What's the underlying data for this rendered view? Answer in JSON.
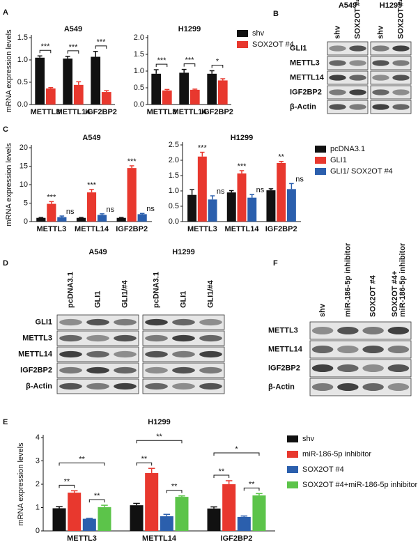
{
  "panel_labels": [
    "A",
    "B",
    "C",
    "D",
    "E",
    "F"
  ],
  "chart_data": [
    {
      "type": "bar",
      "title": "A549",
      "ylabel": "mRNA expression levels",
      "categories": [
        "METTL3",
        "METTL14",
        "IGF2BP2"
      ],
      "series": [
        {
          "color": "#111111",
          "values": [
            1.05,
            1.03,
            1.07
          ],
          "errors": [
            0.04,
            0.05,
            0.12
          ]
        },
        {
          "color": "#e8382e",
          "values": [
            0.36,
            0.44,
            0.28
          ],
          "errors": [
            0.02,
            0.07,
            0.03
          ]
        }
      ],
      "comparisons": [
        {
          "pair": [
            0,
            1
          ],
          "labels": [
            "***",
            "***",
            "***"
          ]
        }
      ],
      "ylim": [
        0,
        1.5
      ],
      "yticks": [
        {
          "value": 0,
          "label": "0.0"
        },
        0.5,
        {
          "value": 1,
          "label": "1.0"
        },
        1.5
      ]
    },
    {
      "type": "bar",
      "title": "H1299",
      "categories": [
        "METTL3",
        "METTL14",
        "IGF2BP2"
      ],
      "series": [
        {
          "name": "shv",
          "color": "#111111",
          "values": [
            0.92,
            0.95,
            0.92
          ],
          "errors": [
            0.12,
            0.1,
            0.09
          ]
        },
        {
          "name": "SOX2OT #4",
          "color": "#e8382e",
          "values": [
            0.42,
            0.44,
            0.72
          ],
          "errors": [
            0.03,
            0.02,
            0.05
          ]
        }
      ],
      "comparisons": [
        {
          "pair": [
            0,
            1
          ],
          "labels": [
            "***",
            "***",
            "*"
          ]
        }
      ],
      "ylim": [
        0,
        2
      ],
      "yticks": [
        {
          "value": 0,
          "label": "0.0"
        },
        0.5,
        {
          "value": 1,
          "label": "1.0"
        },
        1.5,
        {
          "value": 2,
          "label": "2.0"
        }
      ],
      "legend": "right"
    },
    {
      "type": "bar",
      "title": "A549",
      "ylabel": "mRNA expression levels",
      "categories": [
        "METTL3",
        "METTL14",
        "IGF2BP2"
      ],
      "series": [
        {
          "color": "#111111",
          "values": [
            1.0,
            1.0,
            1.0
          ],
          "errors": [
            0.1,
            0.1,
            0.1
          ]
        },
        {
          "color": "#e8382e",
          "values": [
            4.8,
            7.9,
            14.5
          ],
          "errors": [
            0.6,
            0.8,
            0.6
          ],
          "significance": [
            "***",
            "***",
            "***"
          ]
        },
        {
          "color": "#2b5fad",
          "values": [
            1.2,
            1.8,
            2.0
          ],
          "errors": [
            0.3,
            0.3,
            0.2
          ],
          "significance": [
            "ns",
            "ns",
            "ns"
          ]
        }
      ],
      "ylim": [
        0,
        20
      ],
      "yticks": [
        0,
        5,
        10,
        15,
        20
      ]
    },
    {
      "type": "bar",
      "title": "H1299",
      "categories": [
        "METTL3",
        "METTL14",
        "IGF2BP2"
      ],
      "series": [
        {
          "name": "pcDNA3.1",
          "color": "#111111",
          "values": [
            0.87,
            0.95,
            1.02
          ],
          "errors": [
            0.17,
            0.06,
            0.05
          ]
        },
        {
          "name": "GLI1",
          "color": "#e8382e",
          "values": [
            2.12,
            1.57,
            1.91
          ],
          "errors": [
            0.14,
            0.09,
            0.05
          ],
          "significance": [
            "***",
            "***",
            "**"
          ]
        },
        {
          "name": "GLI1/ SOX2OT #4",
          "color": "#2b5fad",
          "values": [
            0.72,
            0.78,
            1.06
          ],
          "errors": [
            0.12,
            0.1,
            0.18
          ],
          "significance": [
            "ns",
            "ns",
            "ns"
          ]
        }
      ],
      "ylim": [
        0,
        2.5
      ],
      "yticks": [
        {
          "value": 0,
          "label": "0.0"
        },
        0.5,
        {
          "value": 1,
          "label": "1.0"
        },
        1.5,
        {
          "value": 2,
          "label": "2.0"
        },
        2.5
      ],
      "legend": "right"
    },
    {
      "type": "bar",
      "title": "H1299",
      "ylabel": "mRNA expression levels",
      "categories": [
        "METTL3",
        "METTL14",
        "IGF2BP2"
      ],
      "series": [
        {
          "name": "shv",
          "color": "#111111",
          "values": [
            0.97,
            1.1,
            0.96
          ],
          "errors": [
            0.07,
            0.08,
            0.07
          ]
        },
        {
          "name": "miR-186-5p inhibitor",
          "color": "#e8382e",
          "values": [
            1.64,
            2.48,
            2.0
          ],
          "errors": [
            0.08,
            0.2,
            0.15
          ]
        },
        {
          "name": "SOX2OT #4",
          "color": "#2b5fad",
          "values": [
            0.52,
            0.63,
            0.6
          ],
          "errors": [
            0.02,
            0.08,
            0.04
          ]
        },
        {
          "name": "SOX2OT #4+miR-186-5p inhibitor",
          "color": "#5cc44a",
          "values": [
            1.02,
            1.46,
            1.52
          ],
          "errors": [
            0.08,
            0.04,
            0.08
          ]
        }
      ],
      "comparisons": [
        {
          "pair": [
            0,
            1
          ],
          "labels": [
            "**",
            "**",
            "**"
          ]
        },
        {
          "pair": [
            2,
            3
          ],
          "labels": [
            "**",
            "**",
            "**"
          ]
        },
        {
          "pair": [
            0,
            3
          ],
          "labels": [
            "**",
            "**",
            "*"
          ]
        }
      ],
      "ylim": [
        0,
        4
      ],
      "yticks": [
        0,
        1,
        2,
        3,
        4
      ],
      "legend": "right"
    }
  ],
  "blots": [
    {
      "titles": [
        "A549",
        "H1299"
      ],
      "lanes": [
        "shv",
        "SOX2OT #4",
        "shv",
        "SOX2OT #4"
      ],
      "rows": [
        "GLI1",
        "METTL3",
        "METTL14",
        "IGF2BP2",
        "β-Actin"
      ]
    },
    {
      "titles": [
        "A549",
        "H1299"
      ],
      "lanes": [
        "pcDNA3.1",
        "GLI1",
        "GLI1/#4",
        "pcDNA3.1",
        "GLI1",
        "GLI1/#4"
      ],
      "rows": [
        "GLI1",
        "METTL3",
        "METTL14",
        "IGF2BP2",
        "β-Actin"
      ]
    },
    {
      "lanes": [
        "shv",
        "miR-186-5p inhibitor",
        "SOX2OT #4",
        [
          "SOX2OT #4+",
          "miR-186-5p inhibitor"
        ]
      ],
      "rows": [
        "METTL3",
        "METTL14",
        "IGF2BP2",
        "β-Actin"
      ]
    }
  ]
}
